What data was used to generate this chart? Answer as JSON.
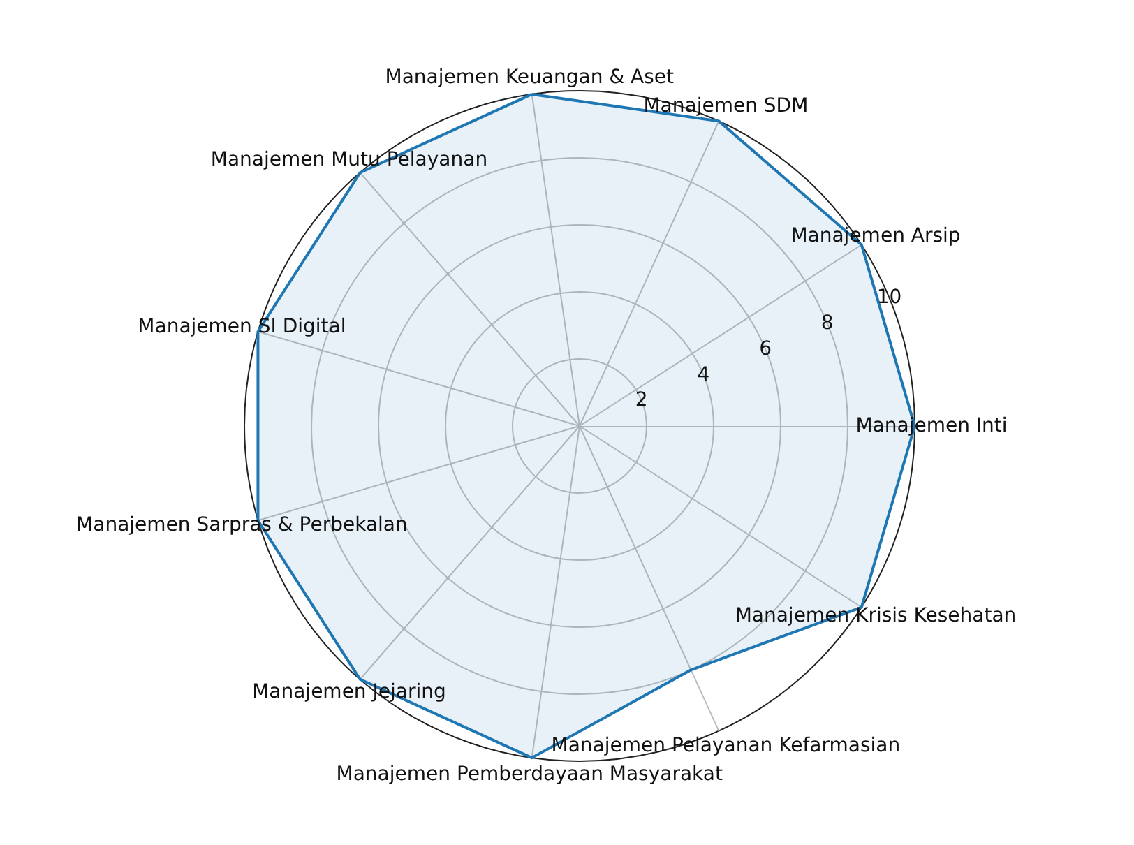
{
  "chart_data": {
    "type": "radar",
    "categories": [
      "Manajemen Keuangan & Aset",
      "Manajemen SDM",
      "Manajemen Arsip",
      "Manajemen Inti",
      "Manajemen Krisis Kesehatan",
      "Manajemen Pelayanan Kefarmasian",
      "Manajemen Pemberdayaan Masyarakat",
      "Manajemen Jejaring",
      "Manajemen Sarpras & Perbekalan",
      "Manajemen SI Digital",
      "Manajemen Mutu Pelayanan"
    ],
    "series": [
      {
        "color": "#1f77b4",
        "values": [
          10,
          10,
          10,
          10,
          10,
          8,
          10,
          10,
          10,
          10,
          10
        ]
      }
    ],
    "ylim": [
      0,
      10
    ],
    "yticks": [
      2,
      4,
      6,
      8,
      10
    ],
    "grid": true,
    "marker": "none"
  }
}
